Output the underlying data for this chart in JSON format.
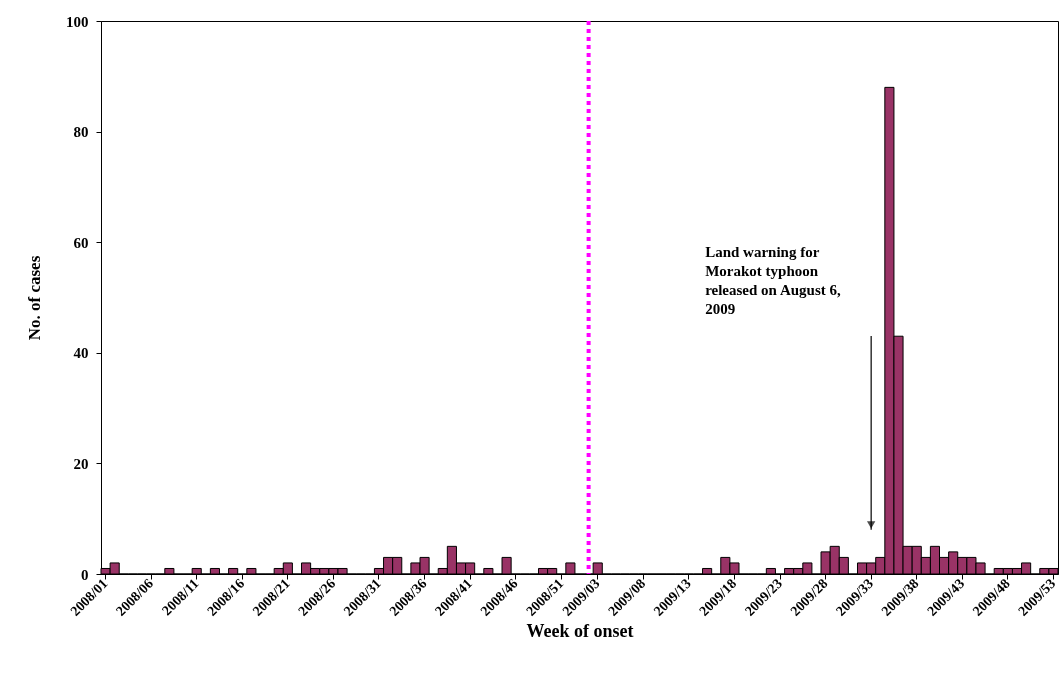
{
  "chart_data": {
    "type": "bar",
    "xlabel": "Week of onset",
    "ylabel": "No. of cases",
    "categories": [
      "2008/01",
      null,
      null,
      null,
      null,
      "2008/06",
      null,
      null,
      null,
      null,
      "2008/11",
      null,
      null,
      null,
      null,
      "2008/16",
      null,
      null,
      null,
      null,
      "2008/21",
      null,
      null,
      null,
      null,
      "2008/26",
      null,
      null,
      null,
      null,
      "2008/31",
      null,
      null,
      null,
      null,
      "2008/36",
      null,
      null,
      null,
      null,
      "2008/41",
      null,
      null,
      null,
      null,
      "2008/46",
      null,
      null,
      null,
      null,
      "2008/51",
      null,
      null,
      null,
      "2009/03",
      null,
      null,
      null,
      null,
      "2009/08",
      null,
      null,
      null,
      null,
      "2009/13",
      null,
      null,
      null,
      null,
      "2009/18",
      null,
      null,
      null,
      null,
      "2009/23",
      null,
      null,
      null,
      null,
      "2009/28",
      null,
      null,
      null,
      null,
      "2009/33",
      null,
      null,
      null,
      null,
      "2009/38",
      null,
      null,
      null,
      null,
      "2009/43",
      null,
      null,
      null,
      null,
      "2009/48",
      null,
      null,
      null,
      null,
      "2009/53"
    ],
    "values": [
      1,
      2,
      0,
      0,
      0,
      0,
      0,
      1,
      0,
      0,
      1,
      0,
      1,
      0,
      1,
      0,
      1,
      0,
      0,
      1,
      2,
      0,
      2,
      1,
      1,
      1,
      1,
      0,
      0,
      0,
      1,
      3,
      3,
      0,
      2,
      3,
      0,
      1,
      5,
      2,
      2,
      0,
      1,
      0,
      3,
      0,
      0,
      0,
      1,
      1,
      0,
      2,
      0,
      0,
      2,
      0,
      0,
      0,
      0,
      0,
      0,
      0,
      0,
      0,
      0,
      0,
      1,
      0,
      3,
      2,
      0,
      0,
      0,
      1,
      0,
      1,
      1,
      2,
      0,
      4,
      5,
      3,
      0,
      2,
      2,
      3,
      88,
      43,
      5,
      5,
      3,
      5,
      3,
      4,
      3,
      3,
      2,
      0,
      1,
      1,
      1,
      2,
      0,
      1,
      1
    ],
    "color": "#993366",
    "ylim": [
      0,
      100
    ],
    "yticks": [
      0,
      20,
      40,
      60,
      80,
      100
    ],
    "grid": false,
    "annotations": [
      "Land warning for\nMorakot typhoon\nreleased on August 6,\n2009"
    ]
  }
}
